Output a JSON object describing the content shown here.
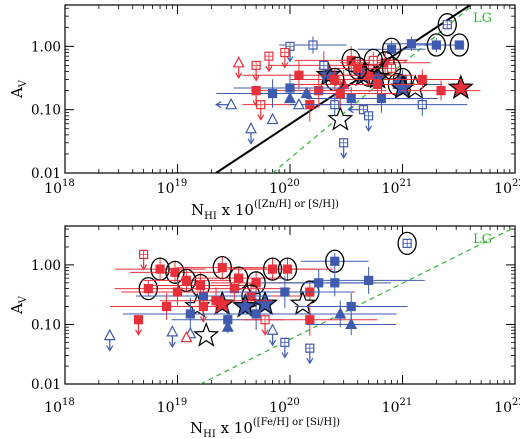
{
  "colors": {
    "red": "#e8303a",
    "blue": "#3f5bb0",
    "green": "#2eb82e",
    "black": "#000000"
  },
  "chart_data": [
    {
      "type": "scatter",
      "xscale": "log",
      "yscale": "log",
      "xlim": [
        1e+18,
        1e+22
      ],
      "ylim": [
        0.01,
        4.5
      ],
      "xlabel": "N",
      "xlabel_sub": "HI",
      "xlabel_mid": " x 10",
      "xlabel_sup": "([Zn/H] or [S/H])",
      "ylabel": "A",
      "ylabel_sub": "V",
      "xticklabels": [
        {
          "base": "10",
          "exp": "18"
        },
        {
          "base": "10",
          "exp": "19"
        },
        {
          "base": "10",
          "exp": "20"
        },
        {
          "base": "10",
          "exp": "21"
        },
        {
          "base": "10",
          "exp": "22"
        }
      ],
      "yticklabels": [
        "0.01",
        "0.10",
        "1.00"
      ],
      "lines": [
        {
          "label": "",
          "style": "solid",
          "color": "black",
          "points": [
            [
              2.2e+19,
              0.01
            ],
            [
              4e+21,
              4.5
            ]
          ]
        },
        {
          "label": "LG",
          "style": "dashed",
          "color": "green",
          "points": [
            [
              7e+19,
              0.01
            ],
            [
              4.2e+21,
              4.5
            ]
          ]
        }
      ],
      "points": [
        {
          "x": 2e+21,
          "y": 1.05,
          "c": "blue",
          "m": "sq",
          "f": 1,
          "circle": 1,
          "ex": 0.25
        },
        {
          "x": 2.5e+21,
          "y": 2.2,
          "c": "blue",
          "m": "sq",
          "f": 0,
          "circle": 1
        },
        {
          "x": 1.2e+21,
          "y": 1.1,
          "c": "blue",
          "m": "sq",
          "f": 1,
          "ex": 0.25
        },
        {
          "x": 3.2e+21,
          "y": 1.05,
          "c": "blue",
          "m": "sq",
          "f": 1,
          "circle": 1
        },
        {
          "x": 1e+21,
          "y": 0.3,
          "c": "blue",
          "m": "sq",
          "f": 1,
          "circle": 1,
          "ex": 0.35
        },
        {
          "x": 8e+20,
          "y": 0.9,
          "c": "blue",
          "m": "sq",
          "f": 1,
          "circle": 1,
          "ex": 0.3
        },
        {
          "x": 9e+20,
          "y": 0.25,
          "c": "blue",
          "m": "sq",
          "f": 1,
          "circle": 1,
          "ex": 0.4
        },
        {
          "x": 1.3e+21,
          "y": 0.22,
          "c": "blue",
          "m": "star",
          "f": 0
        },
        {
          "x": 3.3e+21,
          "y": 0.22,
          "c": "red",
          "m": "star",
          "f": 1
        },
        {
          "x": 6e+20,
          "y": 0.32,
          "c": "blue",
          "m": "star",
          "f": 1
        },
        {
          "x": 4.5e+20,
          "y": 0.35,
          "c": "blue",
          "m": "star",
          "f": 1
        },
        {
          "x": 2.2e+20,
          "y": 0.35,
          "c": "blue",
          "m": "star",
          "f": 1
        },
        {
          "x": 1e+21,
          "y": 0.22,
          "c": "blue",
          "m": "star",
          "f": 1
        },
        {
          "x": 2.8e+20,
          "y": 0.07,
          "c": "blue",
          "m": "star",
          "f": 0
        },
        {
          "x": 3.5e+20,
          "y": 0.6,
          "c": "red",
          "m": "sq",
          "f": 1,
          "circle": 1,
          "ex": 0.5
        },
        {
          "x": 5e+20,
          "y": 0.35,
          "c": "red",
          "m": "sq",
          "f": 1,
          "circle": 1,
          "ex": 0.4
        },
        {
          "x": 7e+20,
          "y": 0.55,
          "c": "red",
          "m": "sq",
          "f": 1,
          "circle": 1,
          "ex": 0.4
        },
        {
          "x": 6e+20,
          "y": 0.25,
          "c": "red",
          "m": "sq",
          "f": 1,
          "ex": 0.4
        },
        {
          "x": 4e+20,
          "y": 0.45,
          "c": "red",
          "m": "sq",
          "f": 1,
          "circle": 1,
          "ex": 0.35
        },
        {
          "x": 3e+20,
          "y": 0.25,
          "c": "red",
          "m": "tri",
          "f": 1,
          "ex": 0.5
        },
        {
          "x": 5.5e+20,
          "y": 0.6,
          "c": "red",
          "m": "sq",
          "f": 0,
          "circle": 1,
          "ex": 0.3
        },
        {
          "x": 8e+20,
          "y": 0.45,
          "c": "red",
          "m": "sq",
          "f": 0,
          "circle": 1
        },
        {
          "x": 2.5e+20,
          "y": 0.3,
          "c": "red",
          "m": "sq",
          "f": 1,
          "circle": 1,
          "ex": 0.4
        },
        {
          "x": 6.5e+20,
          "y": 0.15,
          "c": "blue",
          "m": "sq",
          "f": 1,
          "ex": 0.5
        },
        {
          "x": 3.5e+20,
          "y": 0.15,
          "c": "blue",
          "m": "sq",
          "f": 1,
          "ex": 0.4
        },
        {
          "x": 1.5e+21,
          "y": 0.3,
          "c": "red",
          "m": "sq",
          "f": 1,
          "ex": 0.35
        },
        {
          "x": 2.2e+21,
          "y": 0.2,
          "c": "red",
          "m": "sq",
          "f": 1,
          "ex": 0.35
        },
        {
          "x": 1.5e+21,
          "y": 0.12,
          "c": "blue",
          "m": "sq",
          "f": 0,
          "ex": 0.4
        },
        {
          "x": 2.8e+20,
          "y": 0.18,
          "c": "red",
          "m": "sq",
          "f": 1,
          "ex": 0.5
        },
        {
          "x": 1.8e+20,
          "y": 0.2,
          "c": "red",
          "m": "sq",
          "f": 1,
          "ex": 0.6
        },
        {
          "x": 1.5e+20,
          "y": 0.12,
          "c": "red",
          "m": "sq",
          "f": 1,
          "ex": 0.6
        },
        {
          "x": 1.2e+20,
          "y": 0.35,
          "c": "red",
          "m": "sq",
          "f": 1,
          "ex": 0.5
        },
        {
          "x": 2e+20,
          "y": 0.5,
          "c": "red",
          "m": "sq",
          "f": 1,
          "ex": 0.5
        },
        {
          "x": 7e+19,
          "y": 0.18,
          "c": "blue",
          "m": "sq",
          "f": 1,
          "ex": 0.5
        },
        {
          "x": 1e+20,
          "y": 0.22,
          "c": "blue",
          "m": "sq",
          "f": 1,
          "ex": 0.5
        },
        {
          "x": 2.5e+20,
          "y": 0.12,
          "c": "blue",
          "m": "sq",
          "f": 0,
          "ex": 0.4
        },
        {
          "x": 4.5e+20,
          "y": 0.1,
          "c": "blue",
          "m": "sq",
          "f": 0,
          "arrow": "left"
        },
        {
          "x": 1.6e+20,
          "y": 1.05,
          "c": "blue",
          "m": "sq",
          "f": 0,
          "ex": 0.3
        },
        {
          "x": 1e+20,
          "y": 1.0,
          "c": "blue",
          "m": "sq",
          "f": 0,
          "arrow": "down"
        },
        {
          "x": 2e+20,
          "y": 0.5,
          "c": "blue",
          "m": "sq",
          "f": 0,
          "arrow": "down"
        },
        {
          "x": 3e+20,
          "y": 0.03,
          "c": "blue",
          "m": "sq",
          "f": 0,
          "arrow": "down"
        },
        {
          "x": 5e+20,
          "y": 0.08,
          "c": "blue",
          "m": "sq",
          "f": 0,
          "arrow": "down"
        },
        {
          "x": 3.5e+19,
          "y": 0.55,
          "c": "red",
          "m": "tri",
          "f": 0,
          "arrow": "down"
        },
        {
          "x": 5e+19,
          "y": 0.5,
          "c": "red",
          "m": "sq",
          "f": 0,
          "arrow": "down"
        },
        {
          "x": 6.5e+19,
          "y": 0.7,
          "c": "red",
          "m": "sq",
          "f": 0,
          "arrow": "down"
        },
        {
          "x": 9e+19,
          "y": 0.8,
          "c": "red",
          "m": "sq",
          "f": 0,
          "arrow": "down"
        },
        {
          "x": 5e+19,
          "y": 0.2,
          "c": "red",
          "m": "sq",
          "f": 1,
          "arrow": "down"
        },
        {
          "x": 5.5e+19,
          "y": 0.12,
          "c": "red",
          "m": "sq",
          "f": 0,
          "arrow": "down"
        },
        {
          "x": 3e+19,
          "y": 0.12,
          "c": "blue",
          "m": "tri",
          "f": 0,
          "arrow": "left"
        },
        {
          "x": 4.5e+19,
          "y": 0.05,
          "c": "blue",
          "m": "tri",
          "f": 0,
          "arrow": "down"
        },
        {
          "x": 7e+19,
          "y": 0.07,
          "c": "blue",
          "m": "tri",
          "f": 0
        },
        {
          "x": 1e+20,
          "y": 0.15,
          "c": "blue",
          "m": "tri",
          "f": 1
        },
        {
          "x": 1.4e+20,
          "y": 0.18,
          "c": "blue",
          "m": "tri",
          "f": 1
        },
        {
          "x": 1.2e+20,
          "y": 0.12,
          "c": "blue",
          "m": "tri",
          "f": 0
        }
      ]
    },
    {
      "type": "scatter",
      "xscale": "log",
      "yscale": "log",
      "xlim": [
        1e+18,
        1e+22
      ],
      "ylim": [
        0.01,
        4.5
      ],
      "xlabel": "N",
      "xlabel_sub": "HI",
      "xlabel_mid": " x 10",
      "xlabel_sup": "([Fe/H] or [Si/H])",
      "ylabel": "A",
      "ylabel_sub": "V",
      "xticklabels": [
        {
          "base": "10",
          "exp": "18"
        },
        {
          "base": "10",
          "exp": "19"
        },
        {
          "base": "10",
          "exp": "20"
        },
        {
          "base": "10",
          "exp": "21"
        },
        {
          "base": "10",
          "exp": "22"
        }
      ],
      "yticklabels": [
        "0.01",
        "0.10",
        "1.00"
      ],
      "lines": [
        {
          "label": "LG",
          "style": "dashed",
          "color": "green",
          "points": [
            [
              1.6e+19,
              0.01
            ],
            [
              1.05e+22,
              4.5
            ]
          ]
        }
      ],
      "points": [
        {
          "x": 1.1e+21,
          "y": 2.3,
          "c": "blue",
          "m": "sq",
          "f": 0,
          "circle": 1
        },
        {
          "x": 2.5e+20,
          "y": 1.15,
          "c": "blue",
          "m": "sq",
          "f": 1,
          "circle": 1,
          "ex": 0.3
        },
        {
          "x": 5.5e+18,
          "y": 0.4,
          "c": "red",
          "m": "sq",
          "f": 1,
          "circle": 1,
          "ex": 0.3
        },
        {
          "x": 7e+18,
          "y": 0.85,
          "c": "red",
          "m": "sq",
          "f": 1,
          "circle": 1,
          "ex": 0.4
        },
        {
          "x": 9.5e+18,
          "y": 0.75,
          "c": "red",
          "m": "sq",
          "f": 1,
          "circle": 1,
          "ex": 0.4
        },
        {
          "x": 1.2e+19,
          "y": 0.55,
          "c": "red",
          "m": "sq",
          "f": 1,
          "circle": 1,
          "ex": 0.4
        },
        {
          "x": 1.6e+19,
          "y": 0.45,
          "c": "red",
          "m": "sq",
          "f": 1,
          "circle": 1,
          "ex": 0.5
        },
        {
          "x": 2.5e+19,
          "y": 0.9,
          "c": "red",
          "m": "sq",
          "f": 1,
          "circle": 1,
          "ex": 0.4
        },
        {
          "x": 3.5e+19,
          "y": 0.6,
          "c": "red",
          "m": "sq",
          "f": 1,
          "circle": 1,
          "ex": 0.4
        },
        {
          "x": 5e+19,
          "y": 0.5,
          "c": "red",
          "m": "sq",
          "f": 1,
          "circle": 1,
          "ex": 0.4
        },
        {
          "x": 7e+19,
          "y": 0.85,
          "c": "red",
          "m": "sq",
          "f": 1,
          "circle": 1,
          "ex": 0.4
        },
        {
          "x": 9.5e+19,
          "y": 0.85,
          "c": "red",
          "m": "sq",
          "f": 1,
          "circle": 1,
          "ex": 0.4
        },
        {
          "x": 1.5e+20,
          "y": 0.35,
          "c": "red",
          "m": "sq",
          "f": 1,
          "circle": 1,
          "ex": 0.4
        },
        {
          "x": 4.5e+19,
          "y": 0.3,
          "c": "red",
          "m": "sq",
          "f": 1,
          "circle": 1,
          "ex": 0.5
        },
        {
          "x": 1.5e+19,
          "y": 0.2,
          "c": "red",
          "m": "star",
          "f": 0
        },
        {
          "x": 2.5e+19,
          "y": 0.22,
          "c": "red",
          "m": "star",
          "f": 1
        },
        {
          "x": 4e+19,
          "y": 0.2,
          "c": "blue",
          "m": "star",
          "f": 1
        },
        {
          "x": 6e+19,
          "y": 0.22,
          "c": "blue",
          "m": "star",
          "f": 1
        },
        {
          "x": 1.3e+20,
          "y": 0.22,
          "c": "blue",
          "m": "star",
          "f": 0
        },
        {
          "x": 1.8e+19,
          "y": 0.065,
          "c": "blue",
          "m": "star",
          "f": 0
        },
        {
          "x": 1.7e+19,
          "y": 0.3,
          "c": "blue",
          "m": "sq",
          "f": 1,
          "ex": 0.6
        },
        {
          "x": 2.2e+19,
          "y": 0.25,
          "c": "red",
          "m": "sq",
          "f": 1,
          "ex": 0.5
        },
        {
          "x": 3.2e+19,
          "y": 0.4,
          "c": "red",
          "m": "sq",
          "f": 1,
          "ex": 0.5
        },
        {
          "x": 2.8e+19,
          "y": 0.12,
          "c": "blue",
          "m": "sq",
          "f": 1,
          "ex": 0.5
        },
        {
          "x": 1e+19,
          "y": 0.35,
          "c": "red",
          "m": "sq",
          "f": 1,
          "ex": 0.5
        },
        {
          "x": 8e+18,
          "y": 0.2,
          "c": "red",
          "m": "sq",
          "f": 1,
          "ex": 0.5
        },
        {
          "x": 1.3e+19,
          "y": 0.15,
          "c": "blue",
          "m": "sq",
          "f": 1,
          "ex": 0.6
        },
        {
          "x": 5e+19,
          "y": 0.15,
          "c": "blue",
          "m": "sq",
          "f": 1,
          "ex": 0.6
        },
        {
          "x": 9e+19,
          "y": 0.35,
          "c": "blue",
          "m": "sq",
          "f": 1,
          "ex": 0.6
        },
        {
          "x": 2.5e+20,
          "y": 0.5,
          "c": "blue",
          "m": "sq",
          "f": 1,
          "ex": 0.5
        },
        {
          "x": 3.5e+20,
          "y": 0.2,
          "c": "blue",
          "m": "sq",
          "f": 1,
          "ex": 0.5
        },
        {
          "x": 5e+20,
          "y": 0.55,
          "c": "blue",
          "m": "sq",
          "f": 1,
          "ex": 0.5
        },
        {
          "x": 1.8e+20,
          "y": 0.5,
          "c": "blue",
          "m": "sq",
          "f": 1,
          "ex": 0.5
        },
        {
          "x": 1.5e+20,
          "y": 0.12,
          "c": "red",
          "m": "sq",
          "f": 1,
          "ex": 0.6
        },
        {
          "x": 2.8e+20,
          "y": 0.15,
          "c": "blue",
          "m": "tri",
          "f": 1,
          "ex": 0.5
        },
        {
          "x": 3.5e+20,
          "y": 0.1,
          "c": "blue",
          "m": "tri",
          "f": 1,
          "ex": 0.4
        },
        {
          "x": 2.8e+19,
          "y": 0.09,
          "c": "blue",
          "m": "tri",
          "f": 1
        },
        {
          "x": 9e+19,
          "y": 0.05,
          "c": "blue",
          "m": "sq",
          "f": 0,
          "arrow": "down"
        },
        {
          "x": 5e+18,
          "y": 1.5,
          "c": "red",
          "m": "sq",
          "f": 0,
          "arrow": "down"
        },
        {
          "x": 4.5e+18,
          "y": 0.12,
          "c": "red",
          "m": "sq",
          "f": 1,
          "arrow": "down"
        },
        {
          "x": 1.7e+19,
          "y": 0.2,
          "c": "red",
          "m": "sq",
          "f": 1,
          "arrow": "down"
        },
        {
          "x": 6e+19,
          "y": 0.12,
          "c": "red",
          "m": "sq",
          "f": 0,
          "arrow": "down"
        },
        {
          "x": 2.5e+18,
          "y": 0.065,
          "c": "blue",
          "m": "tri",
          "f": 0,
          "arrow": "down"
        },
        {
          "x": 9e+18,
          "y": 0.075,
          "c": "blue",
          "m": "tri",
          "f": 0,
          "arrow": "down"
        },
        {
          "x": 1.3e+19,
          "y": 0.07,
          "c": "blue",
          "m": "tri",
          "f": 0
        },
        {
          "x": 1.5e+20,
          "y": 0.04,
          "c": "blue",
          "m": "sq",
          "f": 0,
          "arrow": "down"
        },
        {
          "x": 1.2e+19,
          "y": 0.06,
          "c": "red",
          "m": "tri",
          "f": 0
        },
        {
          "x": 7e+19,
          "y": 0.08,
          "c": "blue",
          "m": "tri",
          "f": 0,
          "arrow": "down"
        }
      ]
    }
  ]
}
